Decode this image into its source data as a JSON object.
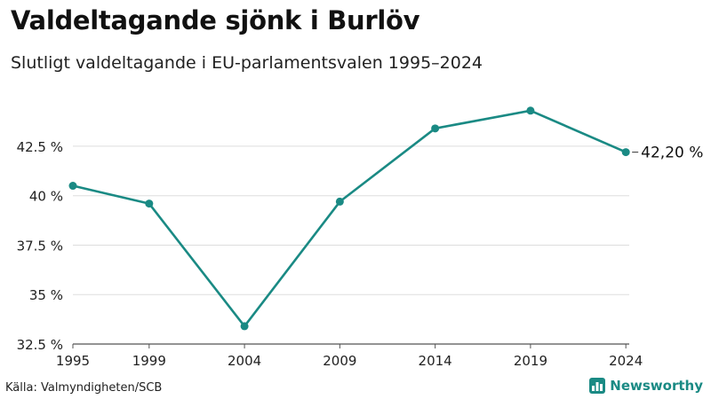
{
  "header": {
    "title": "Valdeltagande sjönk i Burlöv",
    "subtitle": "Slutligt valdeltagande i EU-parlamentsvalen 1995–2024"
  },
  "footer": {
    "source": "Källa: Valmyndigheten/SCB",
    "brand": "Newsworthy",
    "brand_icon": "bar-chart-icon"
  },
  "colors": {
    "line": "#1a8a84",
    "grid": "#dddddd",
    "axis": "#555555",
    "brand": "#1a8a84"
  },
  "chart_data": {
    "type": "line",
    "x": [
      1995,
      1999,
      2004,
      2009,
      2014,
      2019,
      2024
    ],
    "y": [
      40.5,
      39.6,
      33.4,
      39.7,
      43.4,
      44.3,
      42.2
    ],
    "xlim": [
      1995,
      2028
    ],
    "ylim": [
      32.5,
      45.5
    ],
    "yticks": [
      32.5,
      35,
      37.5,
      40,
      42.5
    ],
    "ytick_labels": [
      "32.5 %",
      "35 %",
      "37.5 %",
      "40 %",
      "42.5 %"
    ],
    "xticks": [
      1995,
      1999,
      2004,
      2009,
      2014,
      2019,
      2024
    ],
    "xtick_labels": [
      "1995",
      "1999",
      "2004",
      "2009",
      "2014",
      "2019",
      "2024"
    ],
    "end_label": "42,20 %",
    "grid": true
  }
}
